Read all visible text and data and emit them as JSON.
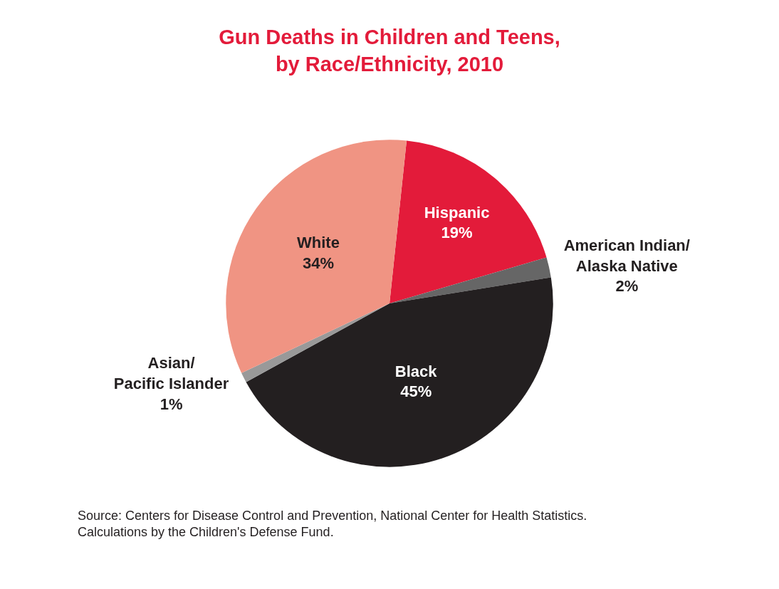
{
  "chart_data": {
    "type": "pie",
    "title": "Gun Deaths in Children and Teens,\nby Race/Ethnicity, 2010",
    "categories": [
      "Hispanic",
      "American Indian/\nAlaska Native",
      "Black",
      "Asian/\nPacific Islander",
      "White"
    ],
    "values": [
      19,
      2,
      45,
      1,
      34
    ],
    "value_labels": [
      "19%",
      "2%",
      "45%",
      "1%",
      "34%"
    ],
    "colors": [
      "#e31b3a",
      "#666666",
      "#231f20",
      "#999999",
      "#f09483"
    ],
    "annotations": [
      "Source: Centers for Disease Control and Prevention, National Center for Health Statistics.\nCalculations by the Children's Defense Fund."
    ],
    "legend": false
  }
}
